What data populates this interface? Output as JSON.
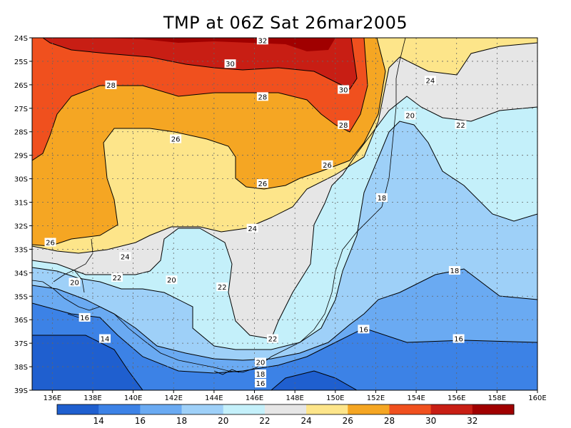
{
  "chart_data": {
    "type": "heatmap",
    "title": "TMP at 06Z Sat 26mar2005",
    "x_ticks": [
      "136E",
      "138E",
      "140E",
      "142E",
      "144E",
      "146E",
      "148E",
      "150E",
      "152E",
      "154E",
      "156E",
      "158E",
      "160E"
    ],
    "y_ticks": [
      "24S",
      "25S",
      "26S",
      "27S",
      "28S",
      "29S",
      "30S",
      "31S",
      "32S",
      "33S",
      "34S",
      "35S",
      "36S",
      "37S",
      "38S",
      "39S"
    ],
    "xlim": [
      135,
      160
    ],
    "ylim": [
      -39,
      -24
    ],
    "grid": true,
    "levels": [
      14,
      16,
      18,
      20,
      22,
      24,
      26,
      28,
      30,
      32
    ],
    "colorbar": {
      "labels": [
        "14",
        "16",
        "18",
        "20",
        "22",
        "24",
        "26",
        "28",
        "30",
        "32"
      ],
      "colors": [
        "#1f5fcf",
        "#3c82e6",
        "#6aaaf2",
        "#9ed0f8",
        "#c4f0fa",
        "#e6e6e6",
        "#fde58a",
        "#f5a623",
        "#f0501e",
        "#c81e14",
        "#a00000"
      ]
    },
    "contour_labels": [
      {
        "text": "32",
        "lon": 146.4,
        "lat": -24.1
      },
      {
        "text": "30",
        "lon": 144.8,
        "lat": -25.1
      },
      {
        "text": "30",
        "lon": 150.4,
        "lat": -26.2
      },
      {
        "text": "28",
        "lon": 138.9,
        "lat": -26.0
      },
      {
        "text": "28",
        "lon": 146.4,
        "lat": -26.5
      },
      {
        "text": "28",
        "lon": 150.4,
        "lat": -27.7
      },
      {
        "text": "26",
        "lon": 142.1,
        "lat": -28.3
      },
      {
        "text": "26",
        "lon": 149.6,
        "lat": -29.4
      },
      {
        "text": "26",
        "lon": 146.4,
        "lat": -30.2
      },
      {
        "text": "26",
        "lon": 135.9,
        "lat": -32.7
      },
      {
        "text": "24",
        "lon": 154.7,
        "lat": -25.8
      },
      {
        "text": "24",
        "lon": 145.9,
        "lat": -32.1
      },
      {
        "text": "24",
        "lon": 139.6,
        "lat": -33.3
      },
      {
        "text": "22",
        "lon": 156.2,
        "lat": -27.7
      },
      {
        "text": "22",
        "lon": 139.2,
        "lat": -34.2
      },
      {
        "text": "22",
        "lon": 144.4,
        "lat": -34.6
      },
      {
        "text": "22",
        "lon": 146.9,
        "lat": -36.8
      },
      {
        "text": "20",
        "lon": 153.7,
        "lat": -27.3
      },
      {
        "text": "20",
        "lon": 137.1,
        "lat": -34.4
      },
      {
        "text": "20",
        "lon": 141.9,
        "lat": -34.3
      },
      {
        "text": "20",
        "lon": 146.3,
        "lat": -37.8
      },
      {
        "text": "18",
        "lon": 152.3,
        "lat": -30.8
      },
      {
        "text": "18",
        "lon": 155.9,
        "lat": -33.9
      },
      {
        "text": "18",
        "lon": 146.3,
        "lat": -38.3
      },
      {
        "text": "16",
        "lon": 137.6,
        "lat": -35.9
      },
      {
        "text": "16",
        "lon": 151.4,
        "lat": -36.4
      },
      {
        "text": "16",
        "lon": 156.1,
        "lat": -36.8
      },
      {
        "text": "16",
        "lon": 146.3,
        "lat": -38.7
      },
      {
        "text": "14",
        "lon": 138.6,
        "lat": -36.8
      }
    ]
  }
}
